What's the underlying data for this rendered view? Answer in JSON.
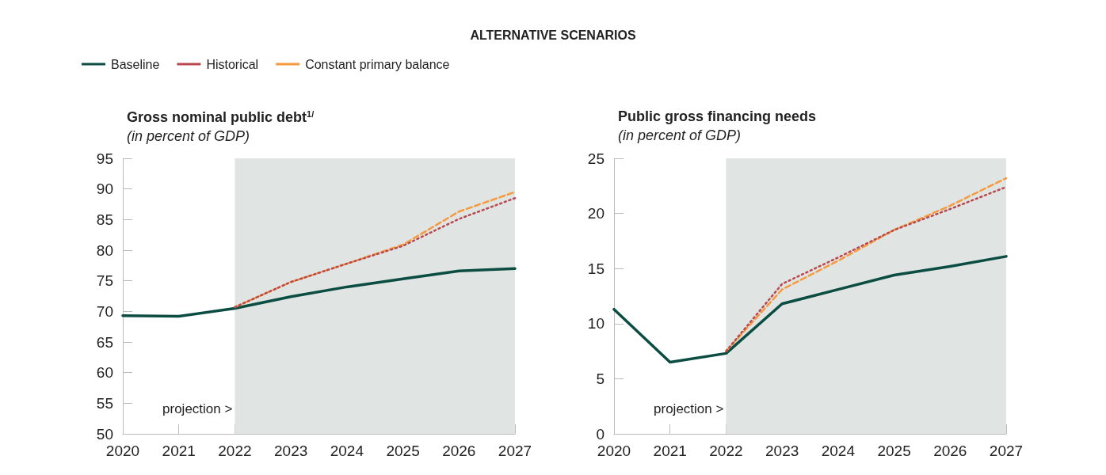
{
  "chart_data": [
    {
      "type": "line",
      "title": "Gross nominal public debt$^{1/}$",
      "subtitle": "(in percent of GDP)",
      "annotations": [
        "ALTERNATIVE SCENARIOS"
      ],
      "x": [
        2020,
        2021,
        2022,
        2023,
        2024,
        2025,
        2026,
        2027
      ],
      "series": [
        {
          "name": "Baseline",
          "color": "#0b4d42",
          "line_style": "solid",
          "values": [
            69.3,
            69.2,
            70.5,
            72.4,
            74.0,
            75.3,
            76.6,
            77.0
          ]
        },
        {
          "name": "Historical",
          "color": "#b9484f",
          "line_style": "dotted",
          "values": [
            null,
            null,
            70.7,
            74.8,
            77.8,
            80.7,
            85.1,
            88.5
          ]
        },
        {
          "name": "Constant primary balance",
          "color": "#f59a3f",
          "line_style": "dashed",
          "values": [
            null,
            null,
            70.7,
            74.8,
            77.8,
            80.9,
            86.3,
            89.5
          ]
        }
      ],
      "xlim": [
        2020,
        2027
      ],
      "xticks": [
        2020,
        2021,
        2022,
        2023,
        2024,
        2025,
        2026,
        2027
      ],
      "ylim": [
        50,
        95
      ],
      "yticks": [
        50,
        55,
        60,
        65,
        70,
        75,
        80,
        85,
        90,
        95
      ],
      "bands": [
        {
          "axis": "x",
          "from": 2022,
          "to": 2027,
          "label": "projection >",
          "color": "#e0e4e2"
        }
      ],
      "grid": false,
      "legend": "top left",
      "marker": "none"
    },
    {
      "type": "line",
      "title": "Public gross financing needs",
      "subtitle": "(in percent of GDP)",
      "x": [
        2020,
        2021,
        2022,
        2023,
        2024,
        2025,
        2026,
        2027
      ],
      "series": [
        {
          "color": "#0b4d42",
          "line_style": "solid",
          "values": [
            11.3,
            6.5,
            7.3,
            11.8,
            13.1,
            14.4,
            15.2,
            16.1
          ]
        },
        {
          "color": "#b9484f",
          "line_style": "dotted",
          "values": [
            null,
            null,
            7.5,
            13.6,
            16.0,
            18.5,
            20.4,
            22.4
          ]
        },
        {
          "color": "#f59a3f",
          "line_style": "dashed",
          "values": [
            null,
            null,
            7.5,
            13.1,
            15.7,
            18.5,
            20.7,
            23.2
          ]
        }
      ],
      "xlim": [
        2020,
        2027
      ],
      "xticks": [
        2020,
        2021,
        2022,
        2023,
        2024,
        2025,
        2026,
        2027
      ],
      "ylim": [
        0,
        25
      ],
      "yticks": [
        0,
        5,
        10,
        15,
        20,
        25
      ],
      "bands": [
        {
          "axis": "x",
          "from": 2022,
          "to": 2027,
          "label": "projection >",
          "color": "#e0e4e2"
        }
      ],
      "grid": false,
      "legend": false,
      "marker": "none"
    }
  ]
}
